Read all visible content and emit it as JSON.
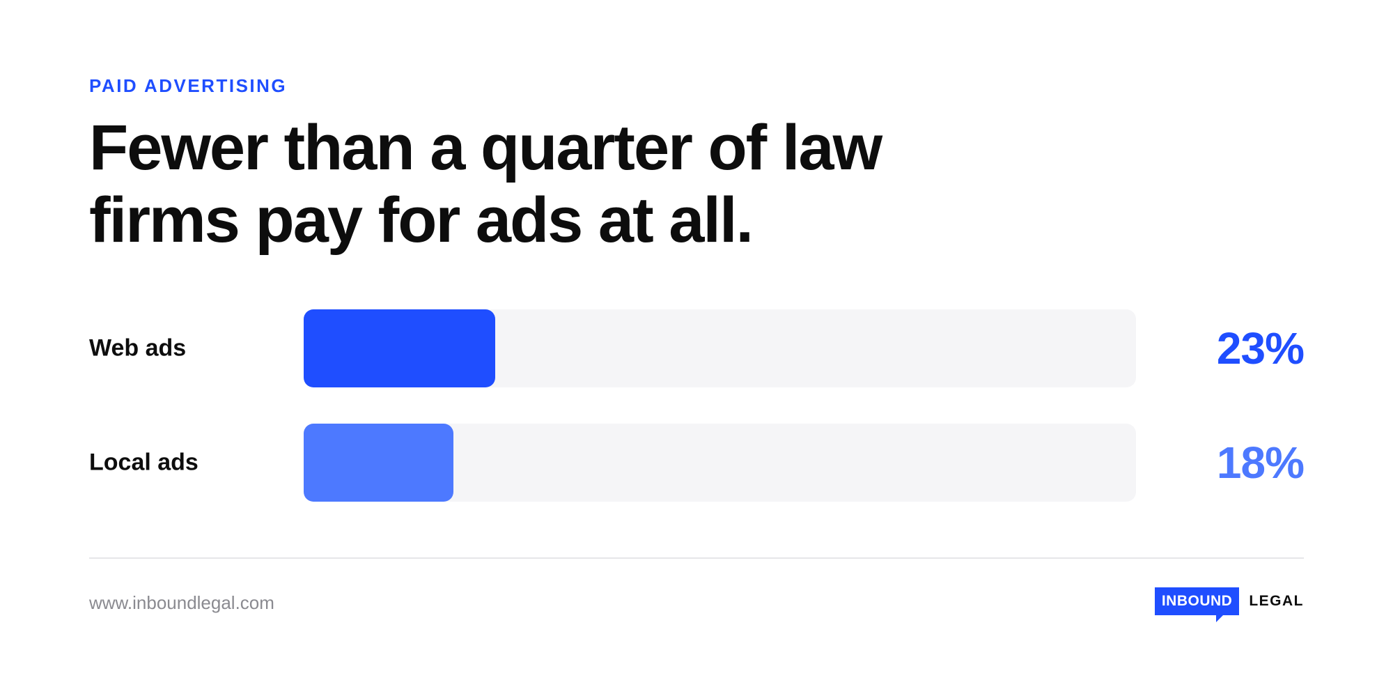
{
  "chart_data": {
    "type": "bar",
    "kicker": "PAID ADVERTISING",
    "title": "Fewer than a quarter of law firms pay for ads at all.",
    "categories": [
      "Web ads",
      "Local ads"
    ],
    "values": [
      23,
      18
    ],
    "value_labels": [
      "23%",
      "18%"
    ],
    "colors": [
      "#1f4eff",
      "#4d79ff"
    ],
    "track_color": "#f5f5f7",
    "xlim": [
      0,
      100
    ]
  },
  "footer": {
    "url": "www.inboundlegal.com",
    "logo": [
      "INBOUND",
      "LEGAL"
    ]
  }
}
